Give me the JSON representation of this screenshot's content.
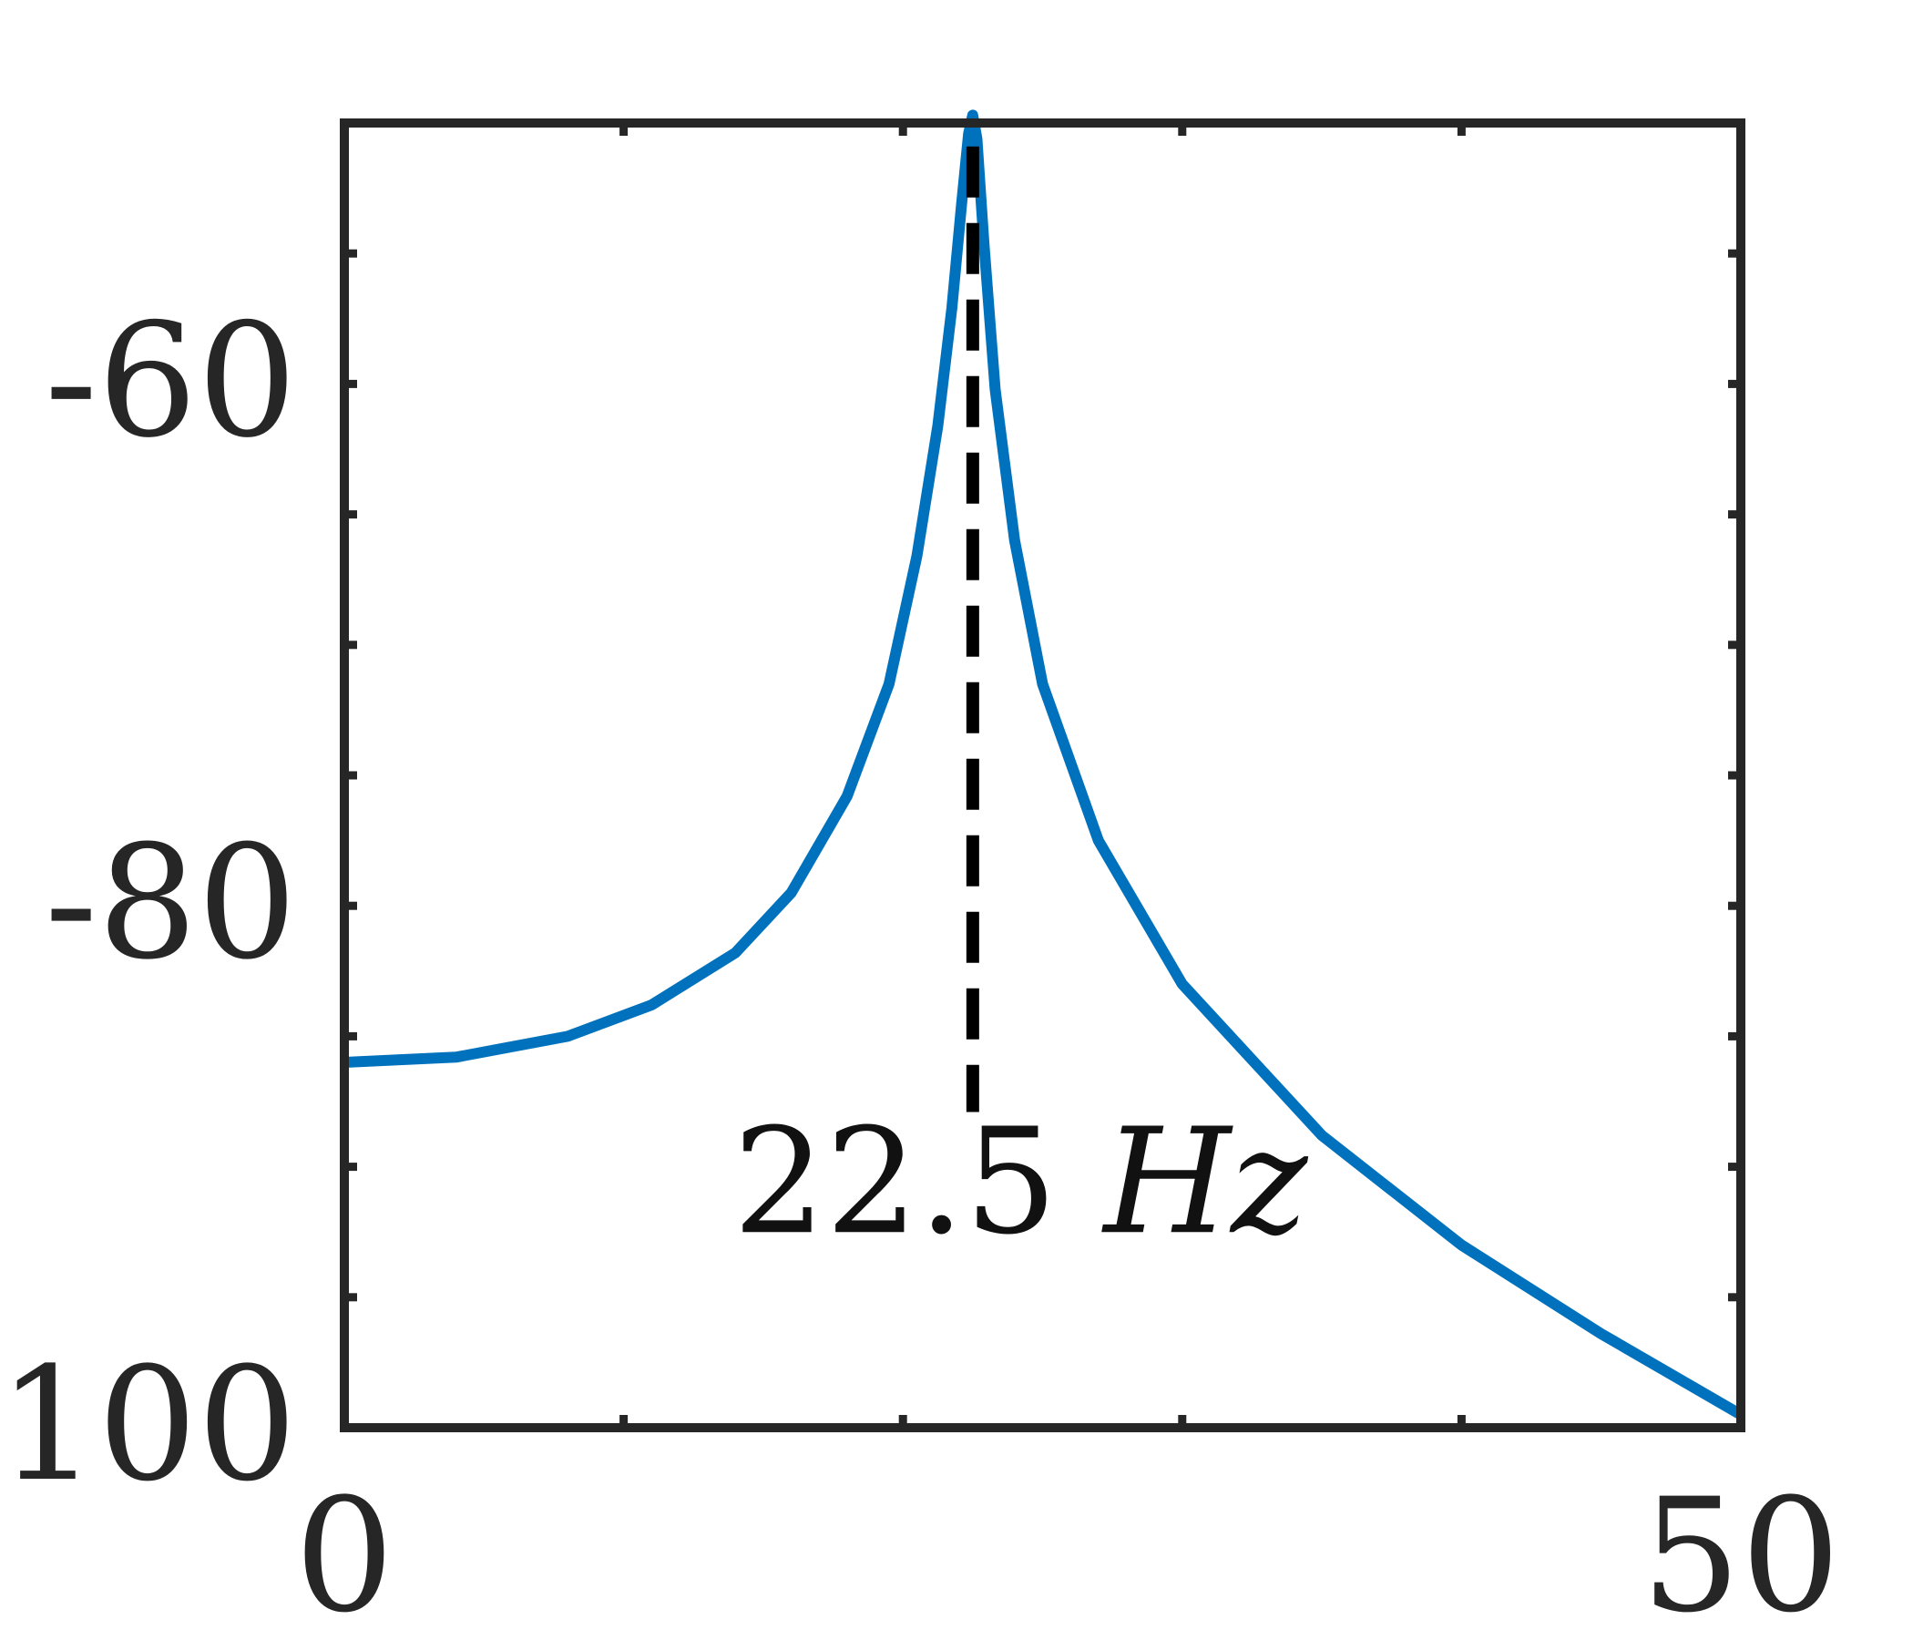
{
  "chart_data": {
    "type": "line",
    "title": "",
    "xlabel": "",
    "ylabel": "",
    "xlim": [
      0,
      50
    ],
    "ylim": [
      -100,
      -50
    ],
    "x_ticks": [
      0,
      10,
      20,
      30,
      40,
      50
    ],
    "x_tick_labels": [
      {
        "value": 0,
        "label": "0"
      },
      {
        "value": 50,
        "label": "50"
      }
    ],
    "y_ticks": [
      -100,
      -95,
      -90,
      -85,
      -80,
      -75,
      -70,
      -65,
      -60,
      -55
    ],
    "y_tick_labels": [
      {
        "value": -60,
        "label": "-60"
      },
      {
        "value": -80,
        "label": "-80"
      },
      {
        "value": -100,
        "label": "-100"
      }
    ],
    "grid": false,
    "series": [
      {
        "color": "#0072BD",
        "x": [
          0,
          4,
          8,
          11,
          14,
          16,
          18,
          19.5,
          20.5,
          21.25,
          21.75,
          22.1,
          22.35,
          22.5,
          22.65,
          22.9,
          23.3,
          24,
          25,
          27,
          30,
          35,
          40,
          45,
          50
        ],
        "y": [
          -86,
          -85.8,
          -85,
          -83.8,
          -81.8,
          -79.5,
          -75.8,
          -71.5,
          -66.6,
          -61.6,
          -57.1,
          -53.1,
          -50.4,
          -49.7,
          -50.6,
          -54.6,
          -60.2,
          -66,
          -71.5,
          -77.5,
          -83,
          -88.8,
          -93,
          -96.4,
          -99.5
        ]
      }
    ],
    "annotations": [
      {
        "type": "vline",
        "x": 22.5,
        "y_from": -50.9,
        "y_to": -87.9,
        "style": "dashed",
        "color": "#000000"
      },
      {
        "type": "text",
        "x": 24.2,
        "y": -92.5,
        "number": "22.5",
        "unit": "Hz"
      }
    ]
  }
}
